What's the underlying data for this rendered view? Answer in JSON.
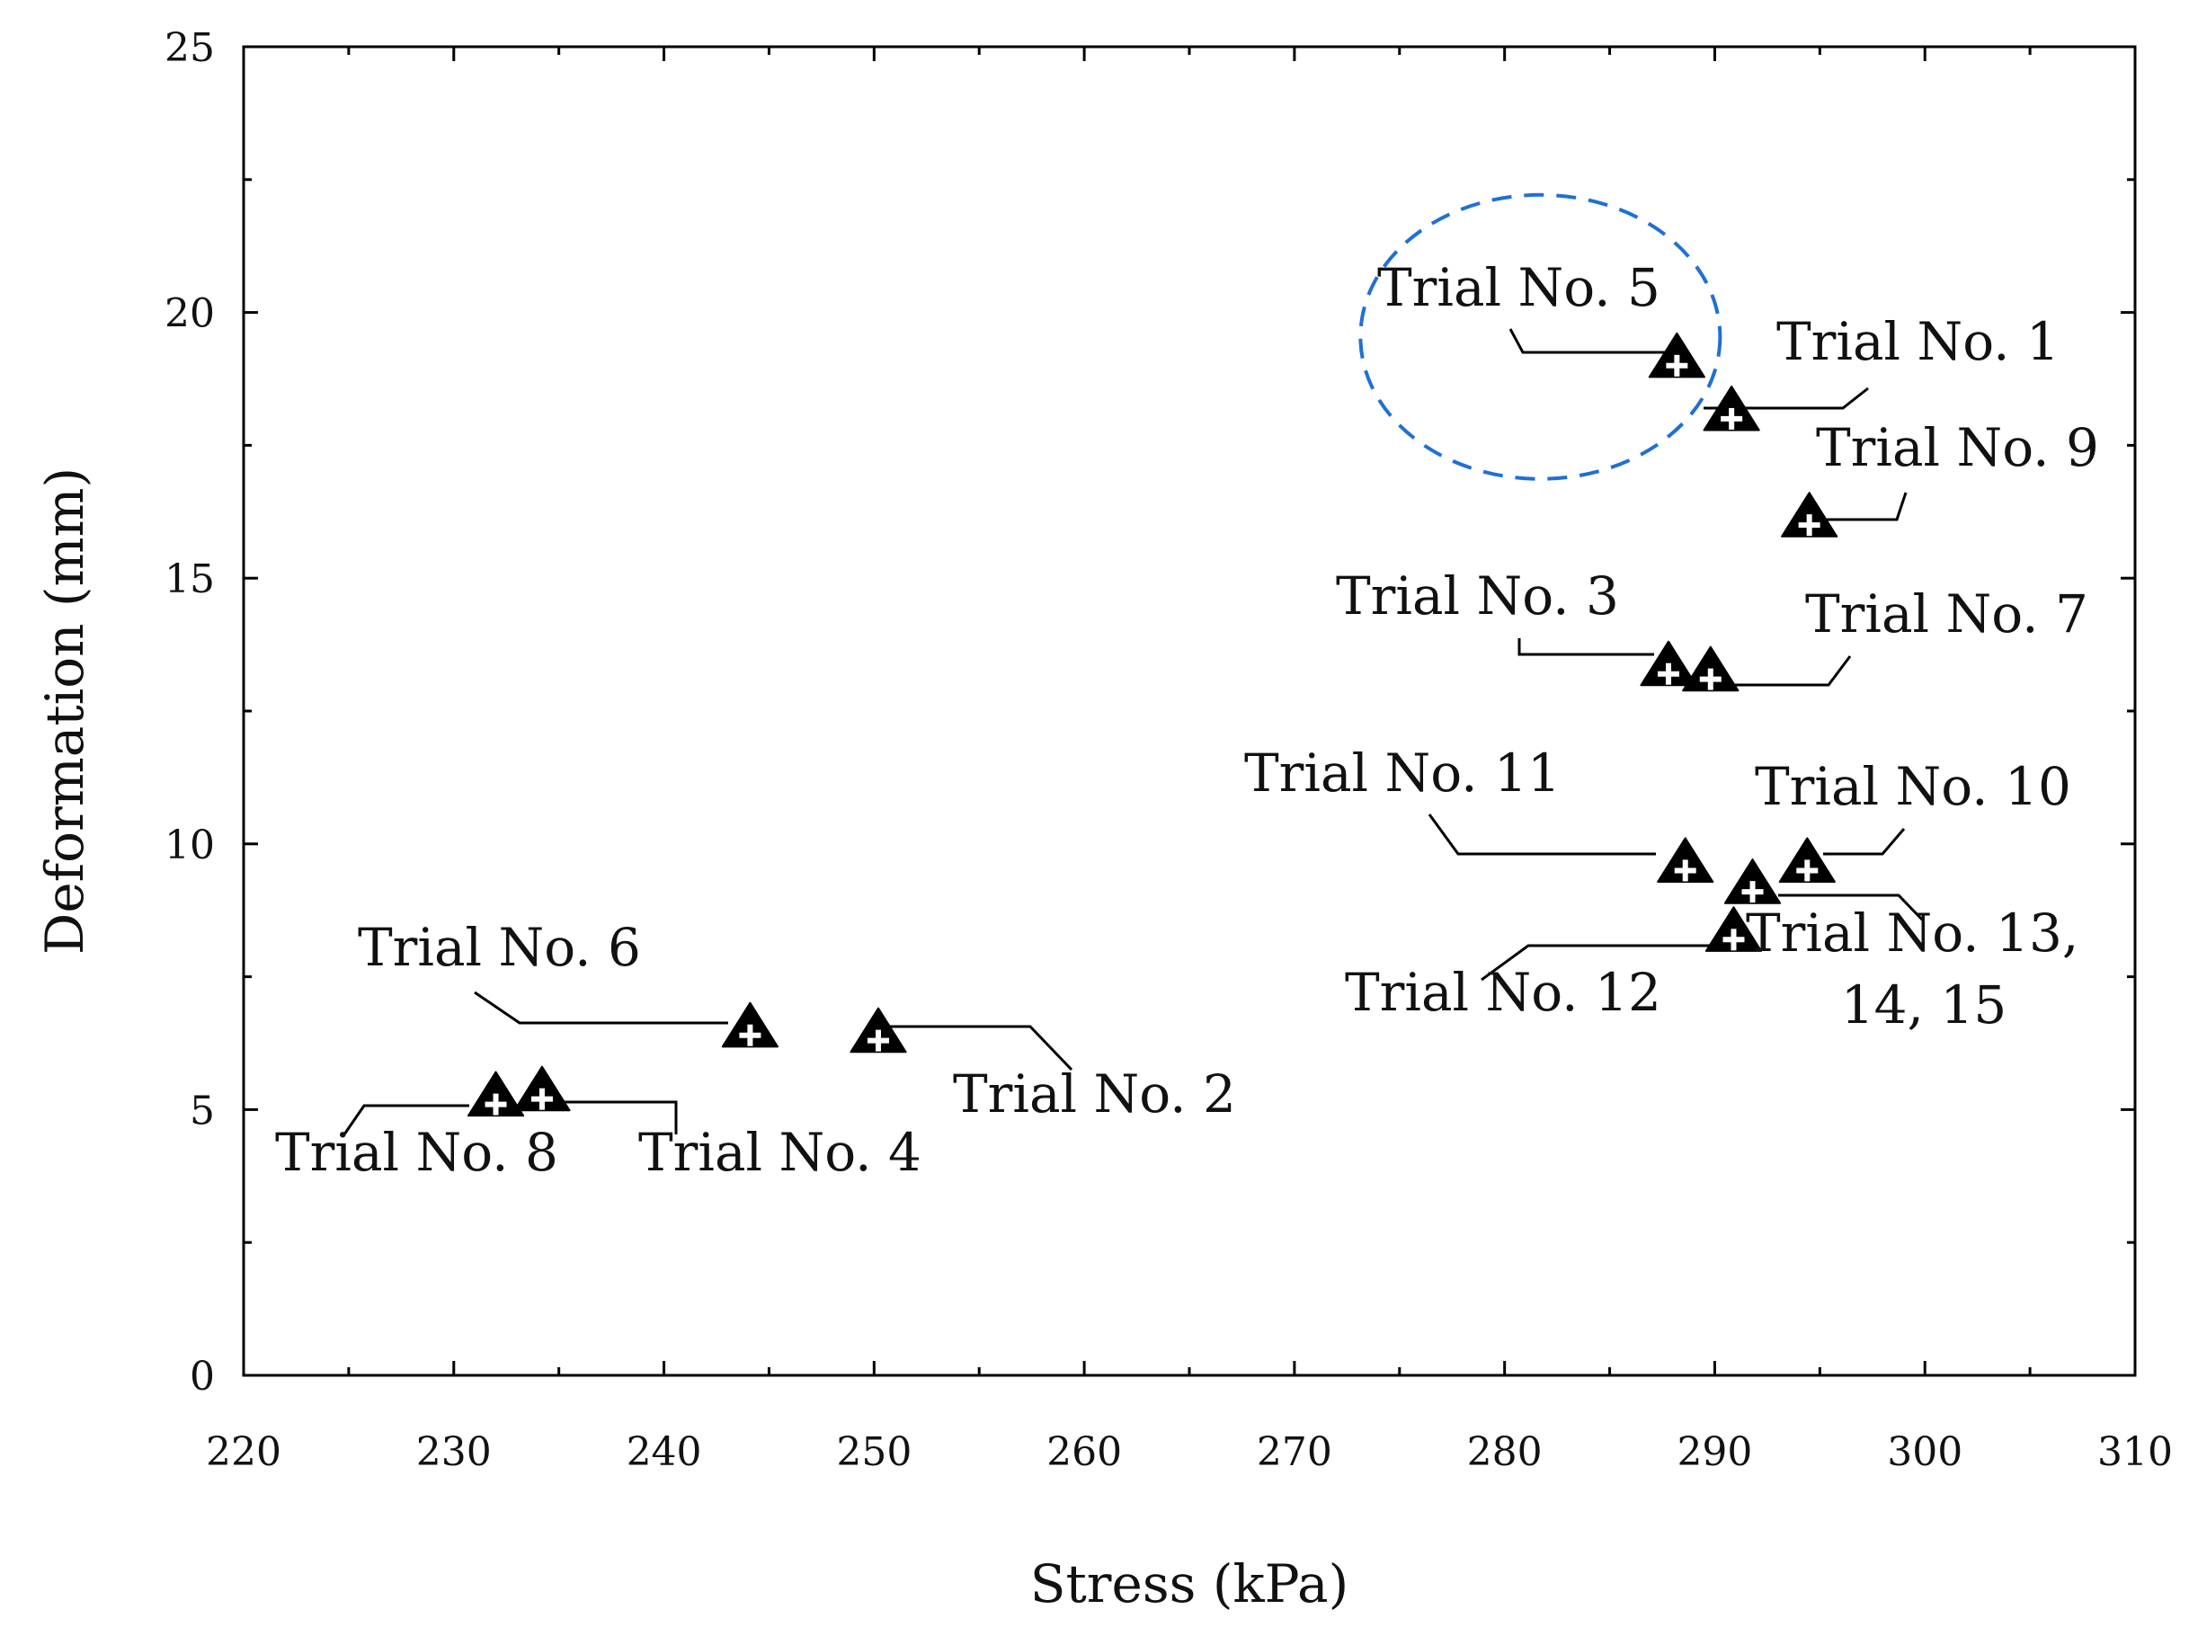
{
  "chart_data": {
    "type": "scatter",
    "title": "",
    "xlabel": "Stress (kPa)",
    "ylabel": "Deformation (mm)",
    "xlim": [
      220,
      310
    ],
    "ylim": [
      0,
      25
    ],
    "x_ticks": [
      220,
      230,
      240,
      250,
      260,
      270,
      280,
      290,
      300,
      310
    ],
    "y_ticks": [
      0,
      5,
      10,
      15,
      20,
      25
    ],
    "grid": false,
    "marker": "filled-triangle-with-plus",
    "points": [
      {
        "label": "Trial No. 1",
        "x": 290.8,
        "y": 18.1
      },
      {
        "label": "Trial No. 2",
        "x": 250.2,
        "y": 6.4
      },
      {
        "label": "Trial No. 3",
        "x": 287.8,
        "y": 13.3
      },
      {
        "label": "Trial No. 4",
        "x": 234.2,
        "y": 5.3
      },
      {
        "label": "Trial No. 5",
        "x": 288.2,
        "y": 19.1
      },
      {
        "label": "Trial No. 6",
        "x": 244.1,
        "y": 6.5
      },
      {
        "label": "Trial No. 7",
        "x": 289.8,
        "y": 13.2
      },
      {
        "label": "Trial No. 8",
        "x": 232.0,
        "y": 5.2
      },
      {
        "label": "Trial No. 9",
        "x": 294.5,
        "y": 16.1
      },
      {
        "label": "Trial No. 10",
        "x": 294.4,
        "y": 9.6
      },
      {
        "label": "Trial No. 11",
        "x": 288.6,
        "y": 9.6
      },
      {
        "label": "Trial No. 12",
        "x": 290.9,
        "y": 8.3
      },
      {
        "label": "Trial No. 13, 14, 15",
        "x": 291.8,
        "y": 9.2
      }
    ],
    "annotations": [
      {
        "type": "dashed-ellipse",
        "color": "#1f6fd6",
        "encloses": "Trial No. 5"
      }
    ]
  }
}
